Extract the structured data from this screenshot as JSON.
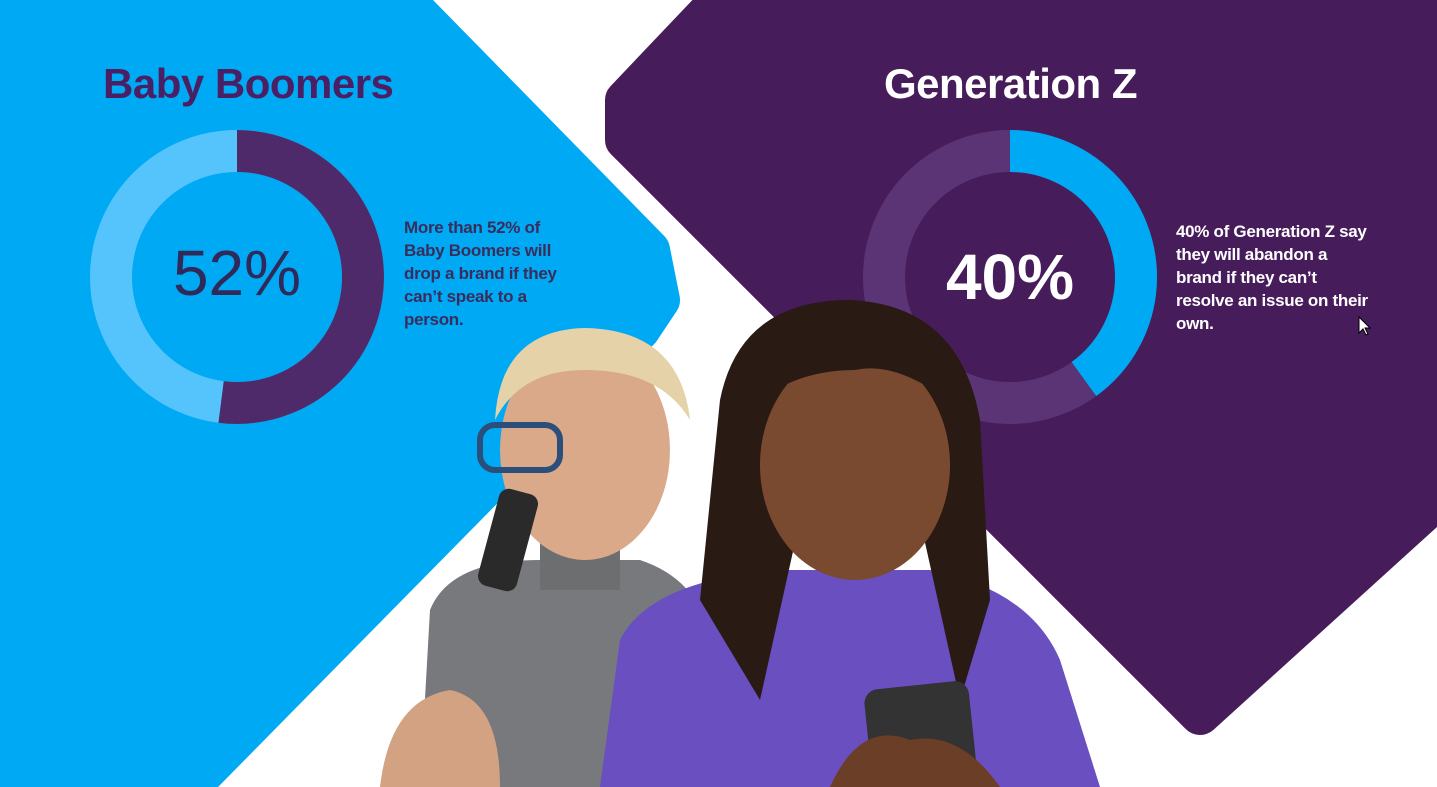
{
  "boomers": {
    "title": "Baby Boomers",
    "percent_label": "52%",
    "description": "More than 52% of Baby Boomers will drop a brand if they can’t speak to a person."
  },
  "genz": {
    "title": "Generation Z",
    "percent_label": "40%",
    "description": "40% of Generation Z say they will abandon a brand if they can’t resolve an issue on their own."
  },
  "chart_data": [
    {
      "type": "pie",
      "variant": "donut",
      "categories": [
        "Baby Boomers"
      ],
      "values": [
        52
      ],
      "unit": "%",
      "colors": {
        "fill": "#4e2a6b",
        "track": "#55c4fd"
      }
    },
    {
      "type": "pie",
      "variant": "donut",
      "categories": [
        "Generation Z"
      ],
      "values": [
        40
      ],
      "unit": "%",
      "colors": {
        "fill": "#00a9f4",
        "track": "#5a3474"
      }
    }
  ],
  "colors": {
    "blue": "#00a9f4",
    "purple": "#461c5b"
  }
}
